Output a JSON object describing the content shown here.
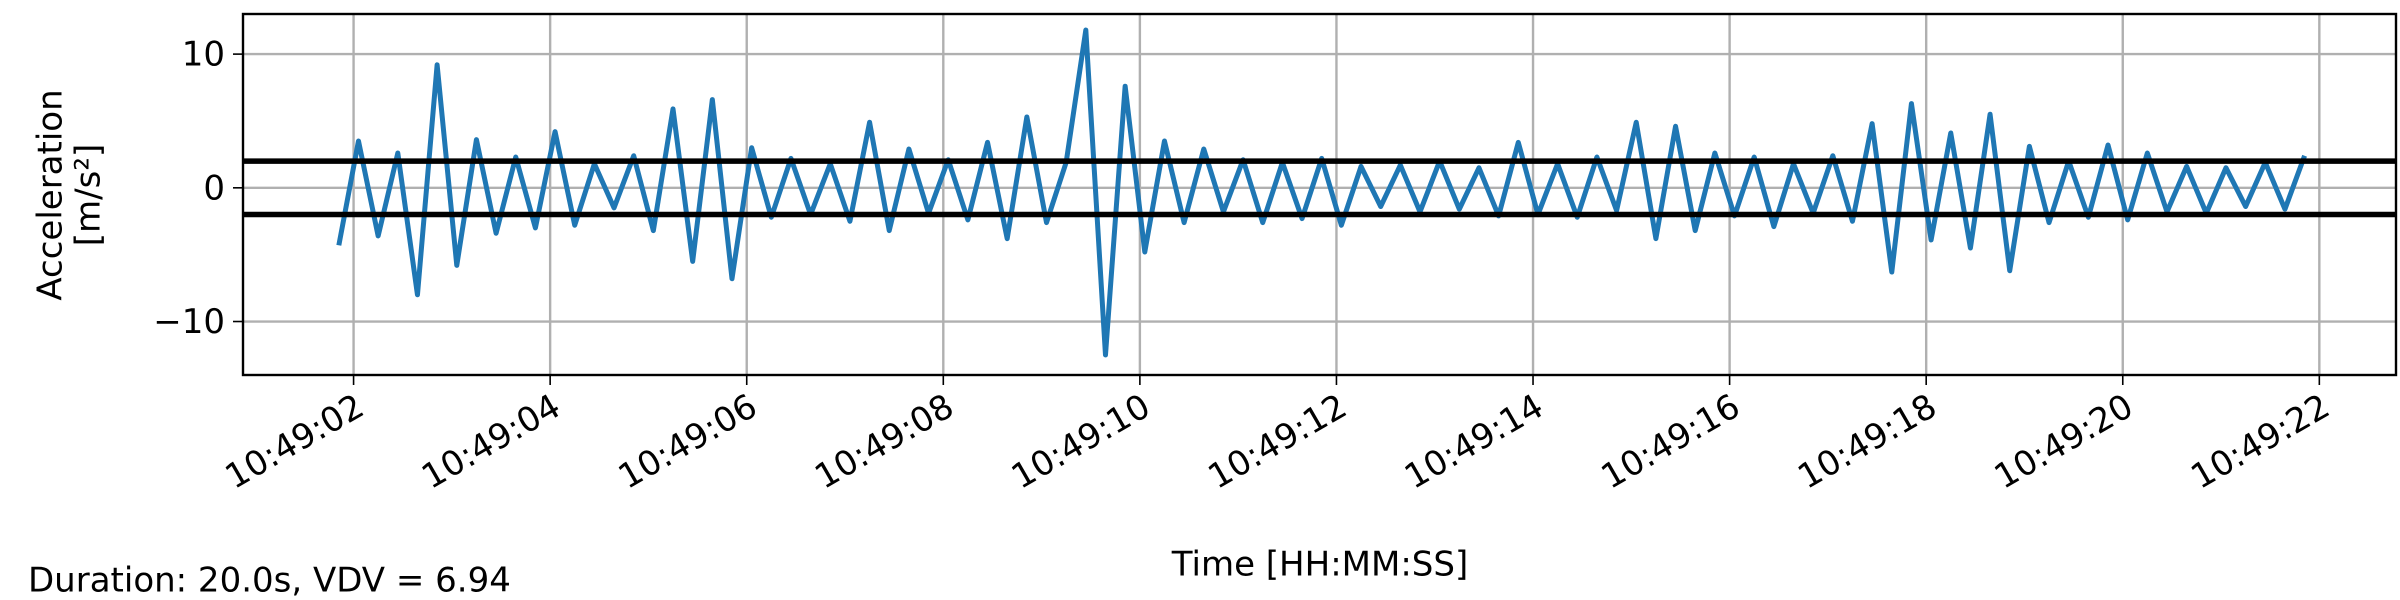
{
  "chart_data": {
    "type": "line",
    "xlabel": "Time [HH:MM:SS]",
    "ylabel": [
      "Acceleration",
      "[m/s²]"
    ],
    "footer": "Duration: 20.0s, VDV = 6.94",
    "xlim": [
      0.875,
      22.78
    ],
    "ylim": [
      -14,
      13
    ],
    "xticks": [
      {
        "value": 2,
        "label": "10:49:02"
      },
      {
        "value": 4,
        "label": "10:49:04"
      },
      {
        "value": 6,
        "label": "10:49:06"
      },
      {
        "value": 8,
        "label": "10:49:08"
      },
      {
        "value": 10,
        "label": "10:49:10"
      },
      {
        "value": 12,
        "label": "10:49:12"
      },
      {
        "value": 14,
        "label": "10:49:14"
      },
      {
        "value": 16,
        "label": "10:49:16"
      },
      {
        "value": 18,
        "label": "10:49:18"
      },
      {
        "value": 20,
        "label": "10:49:20"
      },
      {
        "value": 22,
        "label": "10:49:22"
      }
    ],
    "yticks": [
      {
        "value": -10,
        "label": "−10"
      },
      0,
      10
    ],
    "grid": true,
    "hlines": [
      2,
      -2
    ],
    "hline_color": "#000000",
    "x": [
      1.85,
      2.05,
      2.25,
      2.45,
      2.65,
      2.85,
      3.05,
      3.25,
      3.45,
      3.65,
      3.85,
      4.05,
      4.25,
      4.45,
      4.65,
      4.85,
      5.05,
      5.25,
      5.45,
      5.65,
      5.85,
      6.05,
      6.25,
      6.45,
      6.65,
      6.85,
      7.05,
      7.25,
      7.45,
      7.65,
      7.85,
      8.05,
      8.25,
      8.45,
      8.65,
      8.85,
      9.05,
      9.25,
      9.45,
      9.65,
      9.85,
      10.05,
      10.25,
      10.45,
      10.65,
      10.85,
      11.05,
      11.25,
      11.45,
      11.65,
      11.85,
      12.05,
      12.25,
      12.45,
      12.65,
      12.85,
      13.05,
      13.25,
      13.45,
      13.65,
      13.85,
      14.05,
      14.25,
      14.45,
      14.65,
      14.85,
      15.05,
      15.25,
      15.45,
      15.65,
      15.85,
      16.05,
      16.25,
      16.45,
      16.65,
      16.85,
      17.05,
      17.25,
      17.45,
      17.65,
      17.85,
      18.05,
      18.25,
      18.45,
      18.65,
      18.85,
      19.05,
      19.25,
      19.45,
      19.65,
      19.85,
      20.05,
      20.25,
      20.45,
      20.65,
      20.85,
      21.05,
      21.25,
      21.45,
      21.65,
      21.85
    ],
    "series": [
      {
        "color": "#1f77b4",
        "values": [
          -4.3,
          3.5,
          -3.6,
          2.6,
          -8.0,
          9.2,
          -5.8,
          3.6,
          -3.4,
          2.3,
          -3.0,
          4.2,
          -2.8,
          1.8,
          -1.5,
          2.4,
          -3.2,
          5.9,
          -5.5,
          6.6,
          -6.8,
          3.0,
          -2.2,
          2.2,
          -2.0,
          1.8,
          -2.5,
          4.9,
          -3.2,
          2.9,
          -1.9,
          2.1,
          -2.4,
          3.4,
          -3.8,
          5.3,
          -2.6,
          1.9,
          11.8,
          -12.5,
          7.6,
          -4.8,
          3.5,
          -2.6,
          2.9,
          -1.8,
          2.1,
          -2.6,
          1.9,
          -2.3,
          2.2,
          -2.8,
          1.6,
          -1.4,
          1.7,
          -1.8,
          2.0,
          -1.6,
          1.5,
          -2.1,
          3.4,
          -2.0,
          1.8,
          -2.2,
          2.3,
          -1.7,
          4.9,
          -3.8,
          4.6,
          -3.2,
          2.6,
          -2.1,
          2.3,
          -2.9,
          1.8,
          -1.9,
          2.4,
          -2.5,
          4.8,
          -6.3,
          6.3,
          -3.9,
          4.1,
          -4.5,
          5.5,
          -6.2,
          3.1,
          -2.6,
          2.0,
          -2.2,
          3.2,
          -2.4,
          2.6,
          -1.8,
          1.6,
          -1.9,
          1.5,
          -1.4,
          1.9,
          -1.6,
          2.4
        ]
      }
    ]
  }
}
